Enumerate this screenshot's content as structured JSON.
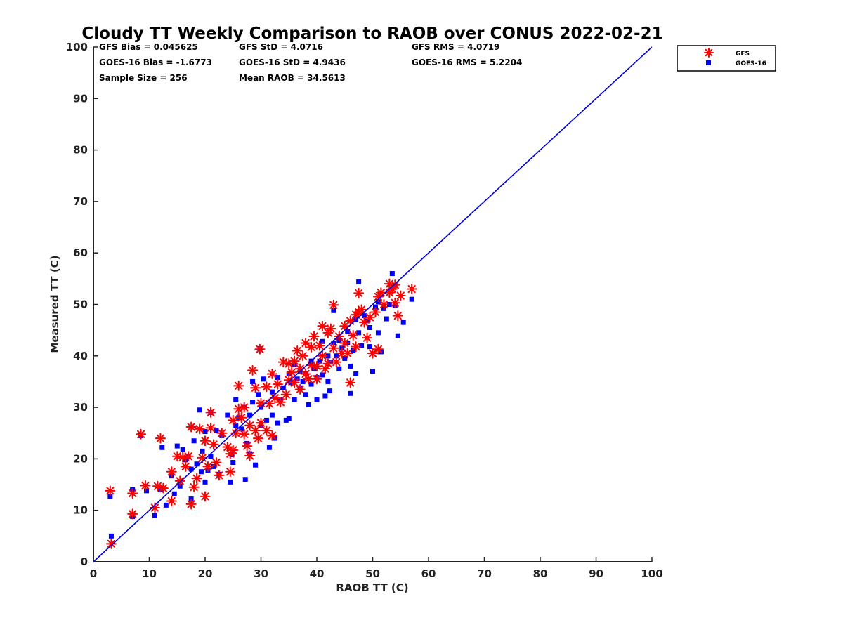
{
  "chart_data": {
    "type": "scatter",
    "title": "Cloudy TT Weekly Comparison to RAOB over CONUS 2022-02-21",
    "xlabel": "RAOB TT (C)",
    "ylabel": "Measured TT (C)",
    "xlim": [
      0,
      100
    ],
    "ylim": [
      0,
      100
    ],
    "xticks": [
      "0",
      "10",
      "20",
      "30",
      "40",
      "50",
      "60",
      "70",
      "80",
      "90",
      "100"
    ],
    "yticks": [
      "0",
      "10",
      "20",
      "30",
      "40",
      "50",
      "60",
      "70",
      "80",
      "90",
      "100"
    ],
    "legend_position": "top-right outside",
    "reference_line": {
      "name": "1:1 line",
      "x": [
        0,
        100
      ],
      "y": [
        0,
        100
      ],
      "color": "#0000dd"
    },
    "stats": {
      "gfs_bias": "GFS Bias = 0.045625",
      "gfs_std": "GFS StD = 4.0716",
      "gfs_rms": "GFS RMS = 4.0719",
      "goes_bias": "GOES-16 Bias = -1.6773",
      "goes_std": "GOES-16 StD = 4.9436",
      "goes_rms": "GOES-16 RMS = 5.2204",
      "sample_size": "Sample Size = 256",
      "mean_raob": "Mean RAOB = 34.5613"
    },
    "series": [
      {
        "name": "GFS",
        "marker": "asterisk",
        "color": "#ff0000",
        "points": [
          [
            3,
            13.8
          ],
          [
            3.2,
            3.5
          ],
          [
            7,
            9.3
          ],
          [
            7,
            13.3
          ],
          [
            8.5,
            24.8
          ],
          [
            9.3,
            14.8
          ],
          [
            11,
            10.5
          ],
          [
            11.5,
            14.7
          ],
          [
            12,
            24
          ],
          [
            12.5,
            14.3
          ],
          [
            14,
            17.5
          ],
          [
            14,
            11.8
          ],
          [
            15,
            20.5
          ],
          [
            15.5,
            15.7
          ],
          [
            16,
            20.3
          ],
          [
            16.5,
            18.5
          ],
          [
            17,
            20.5
          ],
          [
            17.5,
            11.2
          ],
          [
            17.5,
            26.2
          ],
          [
            18,
            14.5
          ],
          [
            18.5,
            16.2
          ],
          [
            19,
            25.8
          ],
          [
            19.5,
            20.2
          ],
          [
            20,
            23.5
          ],
          [
            20,
            12.7
          ],
          [
            20.5,
            18.5
          ],
          [
            21,
            29
          ],
          [
            21,
            26
          ],
          [
            21.5,
            22.8
          ],
          [
            22,
            19.3
          ],
          [
            22.5,
            16.8
          ],
          [
            23,
            25
          ],
          [
            24,
            22.3
          ],
          [
            24.5,
            17.5
          ],
          [
            24.5,
            21
          ],
          [
            25,
            21.7
          ],
          [
            25,
            27.5
          ],
          [
            25.5,
            25
          ],
          [
            26,
            34.2
          ],
          [
            26,
            29.7
          ],
          [
            26.5,
            28
          ],
          [
            27,
            30
          ],
          [
            27,
            24.8
          ],
          [
            27.5,
            22.5
          ],
          [
            28,
            20.6
          ],
          [
            28,
            26.5
          ],
          [
            28.5,
            37.2
          ],
          [
            29,
            33.8
          ],
          [
            29,
            25.5
          ],
          [
            29.5,
            24
          ],
          [
            29.8,
            41.3
          ],
          [
            30,
            30.8
          ],
          [
            30,
            27
          ],
          [
            31,
            34
          ],
          [
            31,
            25.5
          ],
          [
            31.5,
            30.7
          ],
          [
            32,
            36.5
          ],
          [
            32,
            24.5
          ],
          [
            32.5,
            31.8
          ],
          [
            33,
            34.5
          ],
          [
            33.5,
            31
          ],
          [
            34,
            38.8
          ],
          [
            34.5,
            32.5
          ],
          [
            35,
            35.3
          ],
          [
            35,
            38.5
          ],
          [
            35.5,
            36.8
          ],
          [
            36,
            39
          ],
          [
            36,
            34.8
          ],
          [
            36.5,
            41
          ],
          [
            37,
            37.5
          ],
          [
            37,
            33.5
          ],
          [
            37.5,
            40
          ],
          [
            38,
            42.5
          ],
          [
            38,
            36.5
          ],
          [
            38.5,
            35.5
          ],
          [
            39,
            41.7
          ],
          [
            39,
            38.2
          ],
          [
            39.5,
            43.8
          ],
          [
            40,
            38
          ],
          [
            40,
            35.5
          ],
          [
            40.5,
            42
          ],
          [
            41,
            45.8
          ],
          [
            41,
            40
          ],
          [
            41.5,
            37.5
          ],
          [
            42,
            44.5
          ],
          [
            42,
            38.5
          ],
          [
            42.5,
            45.3
          ],
          [
            43,
            49.9
          ],
          [
            43,
            41.5
          ],
          [
            43.5,
            38.8
          ],
          [
            44,
            43.8
          ],
          [
            44.5,
            40.5
          ],
          [
            45,
            45.8
          ],
          [
            45,
            42.5
          ],
          [
            45.5,
            40.5
          ],
          [
            46,
            34.8
          ],
          [
            46,
            46.8
          ],
          [
            46.5,
            44
          ],
          [
            47,
            48
          ],
          [
            47,
            41.8
          ],
          [
            47.5,
            52.2
          ],
          [
            47.5,
            48.5
          ],
          [
            48,
            49
          ],
          [
            48.5,
            46.5
          ],
          [
            49,
            43.5
          ],
          [
            49.5,
            47.5
          ],
          [
            50,
            40.5
          ],
          [
            50.5,
            48.5
          ],
          [
            51,
            51.5
          ],
          [
            51,
            41.3
          ],
          [
            51.5,
            52.3
          ],
          [
            52,
            50
          ],
          [
            53,
            54
          ],
          [
            53,
            52.3
          ],
          [
            53.5,
            53
          ],
          [
            54,
            53.8
          ],
          [
            54,
            50.3
          ],
          [
            54.5,
            47.8
          ],
          [
            55,
            51.7
          ],
          [
            57,
            53
          ]
        ]
      },
      {
        "name": "GOES-16",
        "marker": "square",
        "color": "#0000ff",
        "points": [
          [
            3,
            12.7
          ],
          [
            3.2,
            5
          ],
          [
            7,
            14
          ],
          [
            7,
            8.8
          ],
          [
            8.5,
            24.5
          ],
          [
            9.5,
            13.8
          ],
          [
            11,
            9
          ],
          [
            12,
            14
          ],
          [
            12.3,
            22.2
          ],
          [
            13,
            11
          ],
          [
            14,
            16.7
          ],
          [
            14.5,
            13.2
          ],
          [
            15,
            22.5
          ],
          [
            15.5,
            14.7
          ],
          [
            16,
            21.8
          ],
          [
            16.5,
            19.8
          ],
          [
            17,
            20.5
          ],
          [
            17.5,
            18
          ],
          [
            17.5,
            12.2
          ],
          [
            18,
            23.5
          ],
          [
            18.5,
            19
          ],
          [
            19,
            29.5
          ],
          [
            19.3,
            17.5
          ],
          [
            19.5,
            21.5
          ],
          [
            20,
            15.5
          ],
          [
            20,
            25.3
          ],
          [
            20.5,
            17.8
          ],
          [
            21,
            29
          ],
          [
            21,
            20.5
          ],
          [
            21.5,
            18.5
          ],
          [
            22,
            25.5
          ],
          [
            22.5,
            17
          ],
          [
            23,
            24.5
          ],
          [
            24,
            28.5
          ],
          [
            24.5,
            15.5
          ],
          [
            24.8,
            20.8
          ],
          [
            25,
            19.3
          ],
          [
            25.5,
            26.5
          ],
          [
            25.5,
            31.5
          ],
          [
            26,
            28
          ],
          [
            26.5,
            25.8
          ],
          [
            27,
            30
          ],
          [
            27.2,
            16
          ],
          [
            27.5,
            23
          ],
          [
            28,
            28.5
          ],
          [
            28,
            21
          ],
          [
            28.5,
            31
          ],
          [
            28.5,
            35
          ],
          [
            29,
            18.8
          ],
          [
            29.5,
            32.5
          ],
          [
            29.8,
            41.4
          ],
          [
            30,
            30
          ],
          [
            30,
            26.5
          ],
          [
            30.5,
            35.5
          ],
          [
            31,
            27.5
          ],
          [
            31.5,
            22.2
          ],
          [
            32,
            33
          ],
          [
            32,
            28.5
          ],
          [
            32.5,
            24
          ],
          [
            33,
            35.8
          ],
          [
            33,
            27
          ],
          [
            33.5,
            31.5
          ],
          [
            34,
            33.8
          ],
          [
            34.5,
            27.5
          ],
          [
            35,
            36.5
          ],
          [
            35,
            27.8
          ],
          [
            35.5,
            34.8
          ],
          [
            36,
            38.3
          ],
          [
            36,
            31.5
          ],
          [
            36.5,
            35.5
          ],
          [
            37,
            37
          ],
          [
            37,
            33.8
          ],
          [
            37.5,
            35
          ],
          [
            38,
            36.5
          ],
          [
            38,
            32.5
          ],
          [
            38.5,
            30.5
          ],
          [
            39,
            39
          ],
          [
            39,
            34.5
          ],
          [
            39.5,
            37.5
          ],
          [
            40,
            35.8
          ],
          [
            40,
            31.5
          ],
          [
            40.5,
            39
          ],
          [
            41,
            42.8
          ],
          [
            41,
            36.3
          ],
          [
            41.5,
            32.2
          ],
          [
            42,
            40
          ],
          [
            42,
            35
          ],
          [
            42.5,
            38.8
          ],
          [
            42.3,
            33.2
          ],
          [
            43,
            42.5
          ],
          [
            43,
            48.8
          ],
          [
            43.5,
            40
          ],
          [
            44,
            43
          ],
          [
            44,
            37.5
          ],
          [
            44.5,
            41.5
          ],
          [
            45,
            39.5
          ],
          [
            45.5,
            42.5
          ],
          [
            45.5,
            44.8
          ],
          [
            46,
            38
          ],
          [
            46,
            32.7
          ],
          [
            46.5,
            41
          ],
          [
            47,
            47
          ],
          [
            47,
            36.5
          ],
          [
            47.5,
            54.4
          ],
          [
            47.5,
            44.5
          ],
          [
            48,
            42
          ],
          [
            48.5,
            47.8
          ],
          [
            49,
            46.8
          ],
          [
            49.5,
            45.5
          ],
          [
            49.5,
            41.8
          ],
          [
            50,
            37
          ],
          [
            50.5,
            49.5
          ],
          [
            51,
            44.5
          ],
          [
            51,
            50.5
          ],
          [
            51.5,
            40.8
          ],
          [
            52,
            49.2
          ],
          [
            52.5,
            47.2
          ],
          [
            53,
            50
          ],
          [
            53.5,
            56
          ],
          [
            54,
            49.8
          ],
          [
            54,
            53.7
          ],
          [
            54.5,
            43.9
          ],
          [
            55.5,
            46.5
          ],
          [
            57,
            51
          ]
        ]
      }
    ]
  }
}
